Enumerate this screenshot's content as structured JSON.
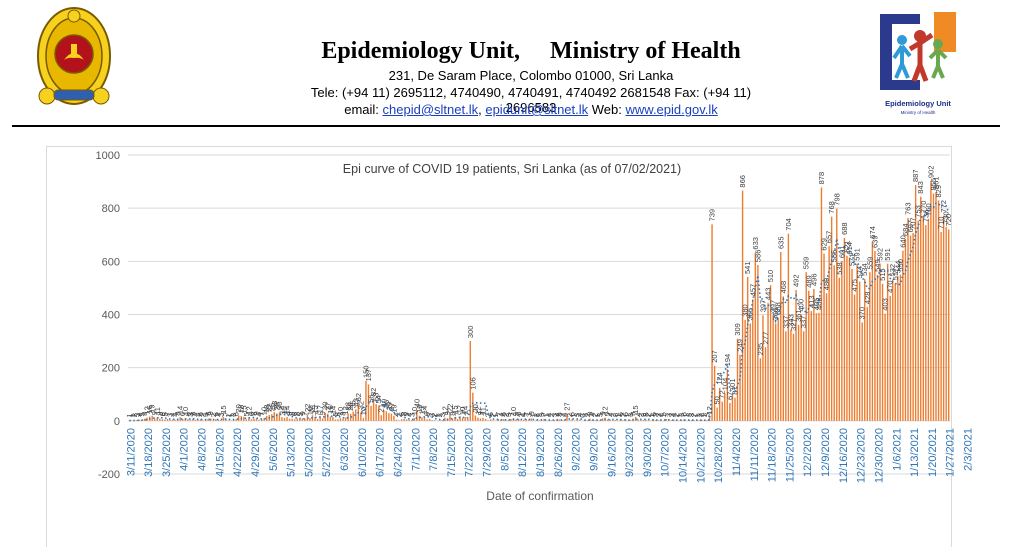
{
  "header": {
    "title_left": "Epidemiology Unit,",
    "title_right": "Ministry of Health",
    "address": "231, De Saram Place, Colombo 01000, Sri Lanka",
    "phone": "Tele: (+94 11) 2695112, 4740490, 4740491, 4740492 2681548  Fax: (+94 11) 2696583",
    "email_prefix": "email: ",
    "email1": "chepid@sltnet.lk",
    "email_sep": ", ",
    "email2": "epidunit@sltnet.lk",
    "web_prefix": " Web: ",
    "web": "www.epid.gov.lk",
    "logo_caption": "Epidemiology Unit",
    "logo_subcaption": "Ministry of Health"
  },
  "colors": {
    "bar": "#ed7d31",
    "trend": "#2e75b6",
    "grid": "#d9d9d9",
    "axis_label": "#2e75b6"
  },
  "chart_data": {
    "type": "bar",
    "title": "Epi curve of COVID 19 patients, Sri Lanka  (as of 07/02/2021)",
    "xlabel": "Date of confirmation",
    "ylabel": "",
    "ylim": [
      -200,
      1000
    ],
    "yticks": [
      -200,
      0,
      200,
      400,
      600,
      800,
      1000
    ],
    "grid": "horizontal",
    "trendline": "dotted moving average",
    "x_tick_labels": [
      "3/11/2020",
      "3/18/2020",
      "3/25/2020",
      "4/1/2020",
      "4/8/2020",
      "4/15/2020",
      "4/22/2020",
      "4/29/2020",
      "5/6/2020",
      "5/13/2020",
      "5/20/2020",
      "5/27/2020",
      "6/3/2020",
      "6/10/2020",
      "6/17/2020",
      "6/24/2020",
      "7/1/2020",
      "7/8/2020",
      "7/15/2020",
      "7/22/2020",
      "7/29/2020",
      "8/5/2020",
      "8/12/2020",
      "8/19/2020",
      "8/26/2020",
      "9/2/2020",
      "9/9/2020",
      "9/16/2020",
      "9/23/2020",
      "9/30/2020",
      "10/7/2020",
      "10/14/2020",
      "10/21/2020",
      "10/28/2020",
      "11/4/2020",
      "11/11/2020",
      "11/18/2020",
      "11/25/2020",
      "12/2/2020",
      "12/9/2020",
      "12/16/2020",
      "12/23/2020",
      "12/30/2020",
      "1/6/2021",
      "1/13/2021",
      "1/20/2021",
      "1/27/2021",
      "2/3/2021"
    ],
    "values": [
      1,
      1,
      2,
      3,
      4,
      5,
      8,
      12,
      16,
      19,
      9,
      11,
      8,
      6,
      5,
      7,
      3,
      4,
      4,
      8,
      14,
      6,
      10,
      6,
      3,
      8,
      4,
      4,
      6,
      2,
      3,
      8,
      9,
      2,
      6,
      4,
      3,
      15,
      7,
      1,
      1,
      3,
      6,
      20,
      18,
      15,
      5,
      12,
      6,
      8,
      9,
      4,
      7,
      10,
      18,
      22,
      25,
      33,
      28,
      30,
      14,
      11,
      14,
      8,
      8,
      6,
      8,
      5,
      9,
      7,
      22,
      10,
      21,
      15,
      7,
      17,
      9,
      30,
      27,
      16,
      14,
      5,
      6,
      10,
      8,
      12,
      28,
      26,
      35,
      43,
      62,
      32,
      10,
      150,
      137,
      56,
      82,
      63,
      54,
      21,
      40,
      36,
      29,
      27,
      19,
      4,
      2,
      6,
      8,
      5,
      4,
      3,
      10,
      40,
      19,
      13,
      14,
      6,
      7,
      3,
      2,
      1,
      2,
      3,
      12,
      9,
      22,
      8,
      15,
      7,
      17,
      10,
      14,
      7,
      300,
      106,
      20,
      12,
      9,
      11,
      7,
      2,
      6,
      2,
      1,
      7,
      4,
      6,
      2,
      3,
      7,
      10,
      5,
      8,
      2,
      4,
      7,
      3,
      9,
      1,
      2,
      2,
      3,
      7,
      1,
      4,
      2,
      3,
      4,
      5,
      2,
      4,
      27,
      2,
      6,
      1,
      3,
      4,
      0,
      3,
      2,
      8,
      4,
      2,
      1,
      3,
      9,
      12,
      5,
      4,
      2,
      3,
      1,
      6,
      2,
      6,
      1,
      3,
      8,
      15,
      4,
      2,
      3,
      5,
      2,
      1,
      6,
      3,
      2,
      4,
      1,
      7,
      3,
      2,
      4,
      2,
      1,
      3,
      6,
      1,
      3,
      3,
      2,
      1,
      2,
      4,
      1,
      3,
      12,
      739,
      207,
      50,
      124,
      72,
      104,
      194,
      67,
      101,
      87,
      309,
      249,
      866,
      380,
      541,
      366,
      457,
      633,
      586,
      235,
      397,
      277,
      443,
      510,
      397,
      366,
      388,
      635,
      468,
      337,
      704,
      343,
      327,
      492,
      361,
      400,
      337,
      559,
      489,
      413,
      496,
      405,
      406,
      878,
      629,
      480,
      657,
      768,
      585,
      798,
      538,
      601,
      688,
      621,
      614,
      571,
      475,
      591,
      524,
      370,
      534,
      428,
      559,
      674,
      639,
      549,
      592,
      515,
      403,
      591,
      470,
      532,
      517,
      544,
      550,
      640,
      684,
      763,
      697,
      707,
      887,
      753,
      843,
      770,
      736,
      760,
      902,
      855,
      861,
      829,
      710,
      772,
      730,
      720
    ]
  }
}
